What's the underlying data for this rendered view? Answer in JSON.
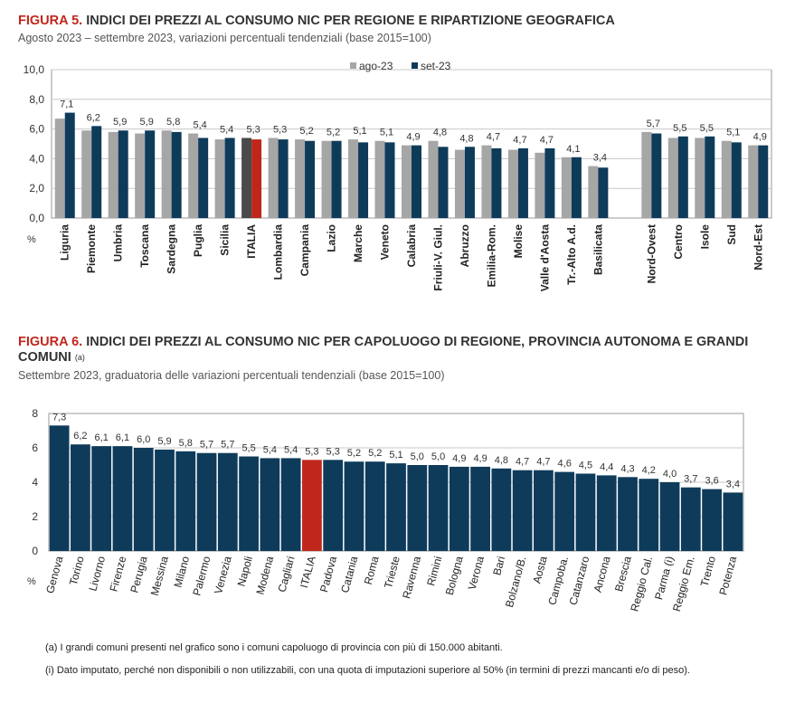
{
  "figure5": {
    "label": "FIGURA 5.",
    "title": "INDICI DEI PREZZI AL CONSUMO NIC PER REGIONE E RIPARTIZIONE GEOGRAFICA",
    "subtitle": "Agosto 2023 – settembre 2023, variazioni percentuali tendenziali (base 2015=100)"
  },
  "figure6": {
    "label": "FIGURA 6.",
    "title": "INDICI DEI PREZZI AL CONSUMO NIC PER CAPOLUOGO DI REGIONE, PROVINCIA AUTONOMA E GRANDI COMUNI",
    "title_note": "(a)",
    "subtitle": "Settembre 2023, graduatoria delle variazioni percentuali tendenziali (base 2015=100)"
  },
  "notes": {
    "note_a": "(a)   I grandi comuni presenti nel grafico sono i comuni capoluogo di provincia con più di 150.000 abitanti.",
    "note_i": "(i)  Dato imputato, perché non disponibili o non utilizzabili, con una quota di imputazioni superiore al 50% (in termini di prezzi mancanti e/o di peso)."
  },
  "colors": {
    "ago": "#a6a6a6",
    "set": "#0e3b5a",
    "italia_set": "#c0271c",
    "italia_ago": "#4a4a4a",
    "grid": "#c8c8c8",
    "plot_border": "#9a9a9a"
  },
  "chart_data": [
    {
      "type": "bar",
      "title": "INDICI DEI PREZZI AL CONSUMO NIC PER REGIONE E RIPARTIZIONE GEOGRAFICA",
      "ylabel": "%",
      "ylim": [
        0,
        10
      ],
      "yticks": [
        "0,0",
        "2,0",
        "4,0",
        "6,0",
        "8,0",
        "10,0"
      ],
      "grid": true,
      "legend_position": "top-center",
      "categories": [
        "Liguria",
        "Piemonte",
        "Umbria",
        "Toscana",
        "Sardegna",
        "Puglia",
        "Sicilia",
        "ITALIA",
        "Lombardia",
        "Campania",
        "Lazio",
        "Marche",
        "Veneto",
        "Calabria",
        "Friuli-V. Giul.",
        "Abruzzo",
        "Emilia-Rom.",
        "Molise",
        "Valle d'Aosta",
        "Tr.-Alto A.d.",
        "Basilicata",
        "",
        "Nord-Ovest",
        "Centro",
        "Isole",
        "Sud",
        "Nord-Est"
      ],
      "series": [
        {
          "name": "ago-23",
          "values": [
            6.7,
            5.9,
            5.8,
            5.7,
            5.9,
            5.7,
            5.3,
            5.4,
            5.4,
            5.3,
            5.2,
            5.3,
            5.2,
            4.9,
            5.2,
            4.6,
            4.9,
            4.6,
            4.4,
            4.1,
            3.5,
            null,
            5.8,
            5.4,
            5.4,
            5.2,
            4.9
          ]
        },
        {
          "name": "set-23",
          "values": [
            7.1,
            6.2,
            5.9,
            5.9,
            5.8,
            5.4,
            5.4,
            5.3,
            5.3,
            5.2,
            5.2,
            5.1,
            5.1,
            4.9,
            4.8,
            4.8,
            4.7,
            4.7,
            4.7,
            4.1,
            3.4,
            null,
            5.7,
            5.5,
            5.5,
            5.1,
            4.9
          ]
        }
      ],
      "data_labels": [
        "7,1",
        "6,2",
        "5,9",
        "5,9",
        "5,8",
        "5,4",
        "5,4",
        "5,3",
        "5,3",
        "5,2",
        "5,2",
        "5,1",
        "5,1",
        "4,9",
        "4,8",
        "4,8",
        "4,7",
        "4,7",
        "4,7",
        "4,1",
        "3,4",
        "",
        "5,7",
        "5,5",
        "5,5",
        "5,1",
        "4,9"
      ]
    },
    {
      "type": "bar",
      "title": "INDICI DEI PREZZI AL CONSUMO NIC PER CAPOLUOGO DI REGIONE, PROVINCIA AUTONOMA E GRANDI COMUNI",
      "ylabel": "%",
      "ylim": [
        0,
        8
      ],
      "yticks": [
        "0",
        "2",
        "4",
        "6",
        "8"
      ],
      "grid": true,
      "categories": [
        "Genova",
        "Torino",
        "Livorno",
        "Firenze",
        "Perugia",
        "Messina",
        "Milano",
        "Palermo",
        "Venezia",
        "Napoli",
        "Modena",
        "Cagliari",
        "ITALIA",
        "Padova",
        "Catania",
        "Roma",
        "Trieste",
        "Ravenna",
        "Rimini",
        "Bologna",
        "Verona",
        "Bari",
        "Bolzano/B.",
        "Aosta",
        "Campoba.",
        "Catanzaro",
        "Ancona",
        "Brescia",
        "Reggio Cal.",
        "Parma (i)",
        "Reggio Em.",
        "Trento",
        "Potenza"
      ],
      "values": [
        7.3,
        6.2,
        6.1,
        6.1,
        6.0,
        5.9,
        5.8,
        5.7,
        5.7,
        5.5,
        5.4,
        5.4,
        5.3,
        5.3,
        5.2,
        5.2,
        5.1,
        5.0,
        5.0,
        4.9,
        4.9,
        4.8,
        4.7,
        4.7,
        4.6,
        4.5,
        4.4,
        4.3,
        4.2,
        4.0,
        3.7,
        3.6,
        3.4
      ],
      "data_labels": [
        "7,3",
        "6,2",
        "6,1",
        "6,1",
        "6,0",
        "5,9",
        "5,8",
        "5,7",
        "5,7",
        "5,5",
        "5,4",
        "5,4",
        "5,3",
        "5,3",
        "5,2",
        "5,2",
        "5,1",
        "5,0",
        "5,0",
        "4,9",
        "4,9",
        "4,8",
        "4,7",
        "4,7",
        "4,6",
        "4,5",
        "4,4",
        "4,3",
        "4,2",
        "4,0",
        "3,7",
        "3,6",
        "3,4"
      ]
    }
  ]
}
